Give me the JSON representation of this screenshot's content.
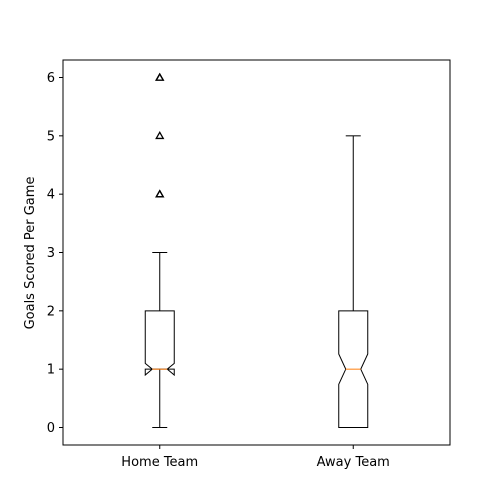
{
  "chart_data": {
    "type": "box",
    "notched": true,
    "ylabel": "Goals Scored Per Game",
    "xlabel": "",
    "ylim": [
      -0.3,
      6.3
    ],
    "yticks": [
      0,
      1,
      2,
      3,
      4,
      5,
      6
    ],
    "categories": [
      "Home Team",
      "Away Team"
    ],
    "boxes": [
      {
        "name": "Home Team",
        "whisker_low": 0,
        "q1": 1,
        "median": 1,
        "q3": 2,
        "whisker_high": 3,
        "notch_low": 0.9,
        "notch_high": 1.1,
        "outliers": [
          4,
          4,
          5,
          6,
          6
        ]
      },
      {
        "name": "Away Team",
        "whisker_low": 0,
        "q1": 0,
        "median": 1,
        "q3": 2,
        "whisker_high": 5,
        "notch_low": 0.74,
        "notch_high": 1.26,
        "outliers": []
      }
    ],
    "colors": {
      "box": "#000000",
      "median": "#ff7f0e"
    },
    "grid": false
  }
}
